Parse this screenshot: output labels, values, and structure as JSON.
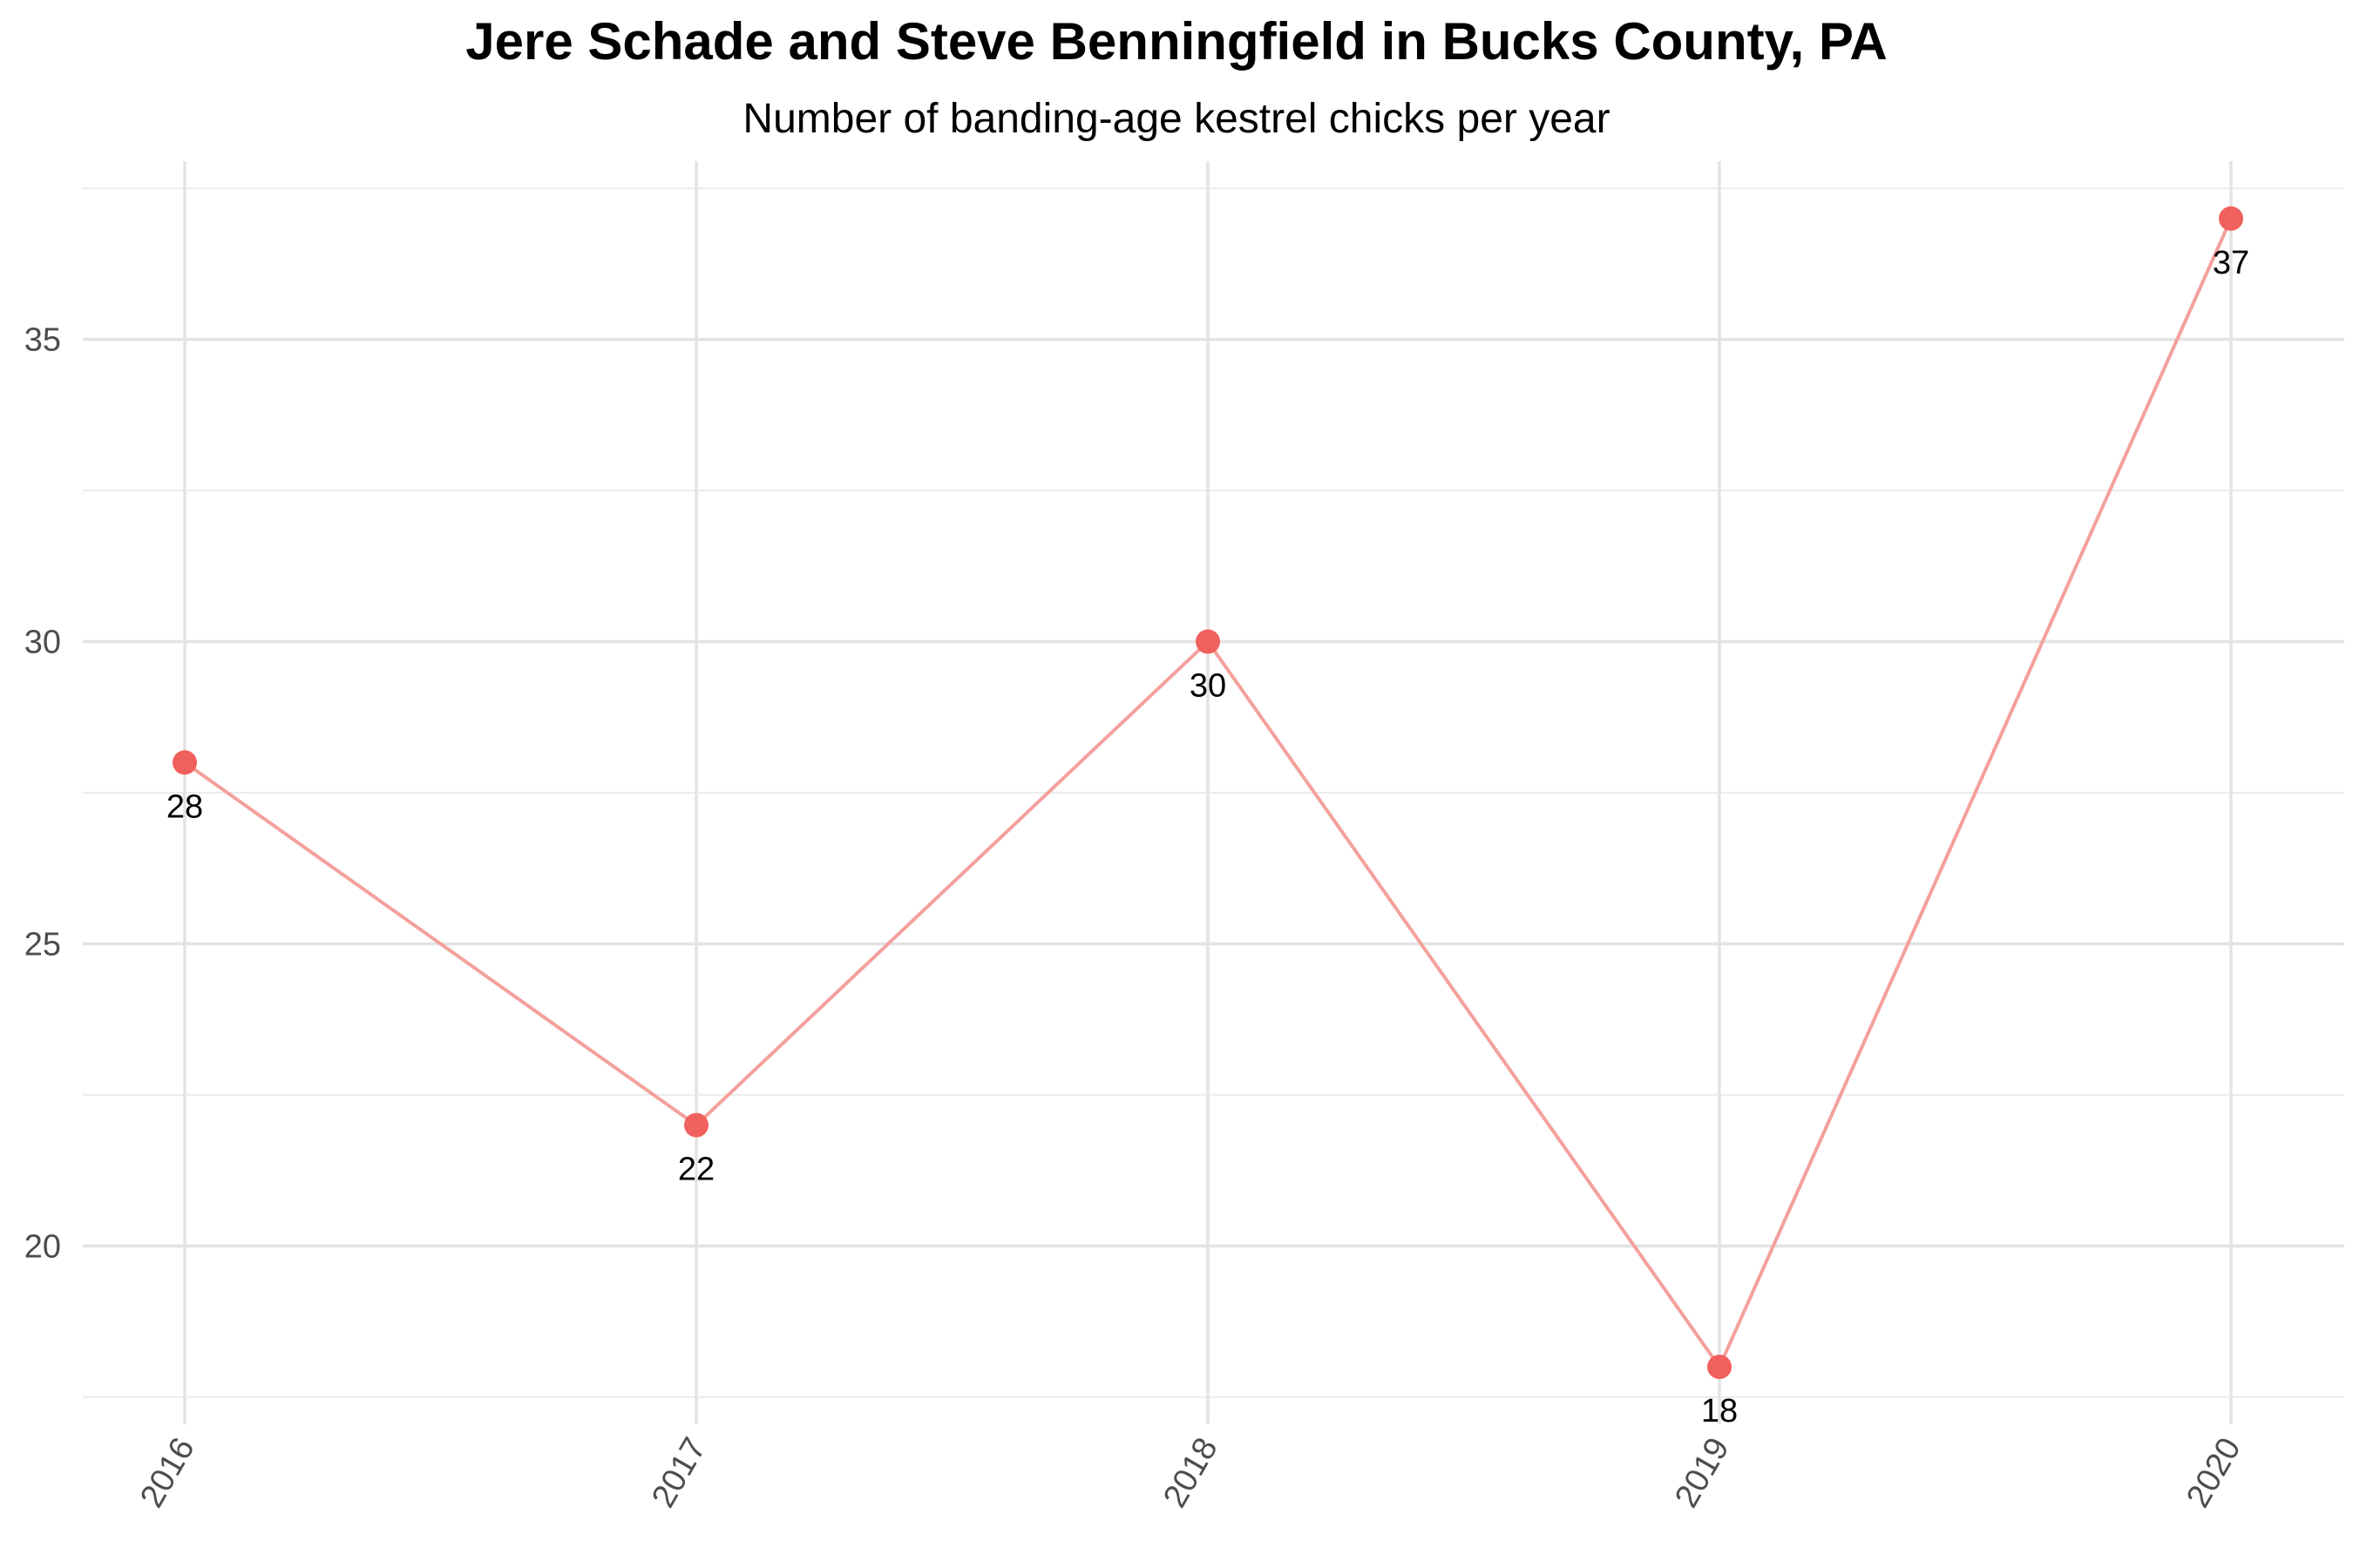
{
  "chart_data": {
    "type": "line",
    "title": "Jere Schade and Steve Benningfield in Bucks County, PA",
    "subtitle": "Number of banding-age kestrel chicks per year",
    "xlabel": "",
    "ylabel": "",
    "categories": [
      "2016",
      "2017",
      "2018",
      "2019",
      "2020"
    ],
    "series": [
      {
        "values": [
          28,
          22,
          30,
          18,
          37
        ],
        "line_color": "#f4a09d",
        "point_color": "#f0605d"
      }
    ],
    "data_labels": [
      "28",
      "22",
      "30",
      "18",
      "37"
    ],
    "ylim": [
      17.05,
      37.95
    ],
    "yticks": [
      20,
      25,
      30,
      35
    ],
    "ytick_labels": [
      "20",
      "25",
      "30",
      "35"
    ],
    "y_minor_ticks": [
      17.5,
      22.5,
      27.5,
      32.5,
      37.5
    ],
    "x_tick_rotation": "-60deg",
    "grid": true,
    "legend": "none",
    "background": "#ffffff"
  }
}
